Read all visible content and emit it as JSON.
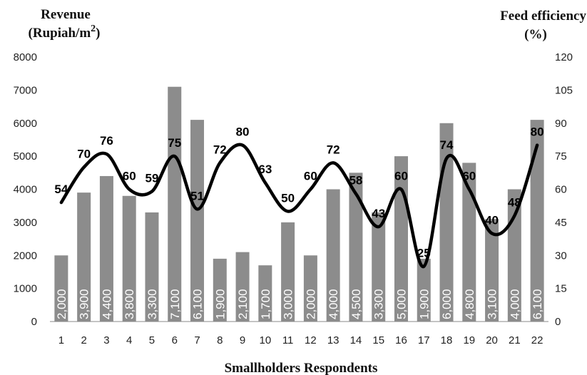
{
  "chart_data": {
    "type": "bar+line",
    "xlabel": "Smallholders Respondents",
    "y_left_label": [
      "Revenue",
      "(Rupiah/m",
      "2",
      ")"
    ],
    "y_right_label": [
      "Feed efficiency",
      "(%)"
    ],
    "categories": [
      "1",
      "2",
      "3",
      "4",
      "5",
      "6",
      "7",
      "8",
      "9",
      "10",
      "11",
      "12",
      "13",
      "14",
      "15",
      "16",
      "17",
      "18",
      "19",
      "20",
      "21",
      "22"
    ],
    "y_left_ticks": [
      "0",
      "1000",
      "2000",
      "3000",
      "4000",
      "5000",
      "6000",
      "7000",
      "8000"
    ],
    "y_right_ticks": [
      "0",
      "15",
      "30",
      "45",
      "60",
      "75",
      "90",
      "105",
      "120"
    ],
    "y_left_range": [
      0,
      8000
    ],
    "y_right_range": [
      0,
      120
    ],
    "grid": false,
    "bar_color": "#8c8c8c",
    "line_color": "#000000",
    "series": [
      {
        "type": "bar",
        "axis": "left",
        "values": [
          2000,
          3900,
          4400,
          3800,
          3300,
          7100,
          6100,
          1900,
          2100,
          1700,
          3000,
          2000,
          4000,
          4500,
          3300,
          5000,
          1900,
          6000,
          4800,
          3100,
          4000,
          6100
        ],
        "labels": [
          "2,000",
          "3,900",
          "4,400",
          "3,800",
          "3,300",
          "7,100",
          "6,100",
          "1,900",
          "2,100",
          "1,700",
          "3,000",
          "2,000",
          "4,000",
          "4,500",
          "3,300",
          "5,000",
          "1,900",
          "6,000",
          "4,800",
          "3,100",
          "4,000",
          "6,100"
        ]
      },
      {
        "type": "line",
        "axis": "right",
        "smooth": true,
        "values": [
          54,
          70,
          76,
          60,
          59,
          75,
          51,
          72,
          80,
          63,
          50,
          60,
          72,
          58,
          43,
          60,
          25,
          74,
          60,
          40,
          48,
          80
        ],
        "labels": [
          "54",
          "70",
          "76",
          "60",
          "59",
          "75",
          "51",
          "72",
          "80",
          "63",
          "50",
          "60",
          "72",
          "58",
          "43",
          "60",
          "25",
          "74",
          "60",
          "40",
          "48",
          "80"
        ]
      }
    ]
  }
}
